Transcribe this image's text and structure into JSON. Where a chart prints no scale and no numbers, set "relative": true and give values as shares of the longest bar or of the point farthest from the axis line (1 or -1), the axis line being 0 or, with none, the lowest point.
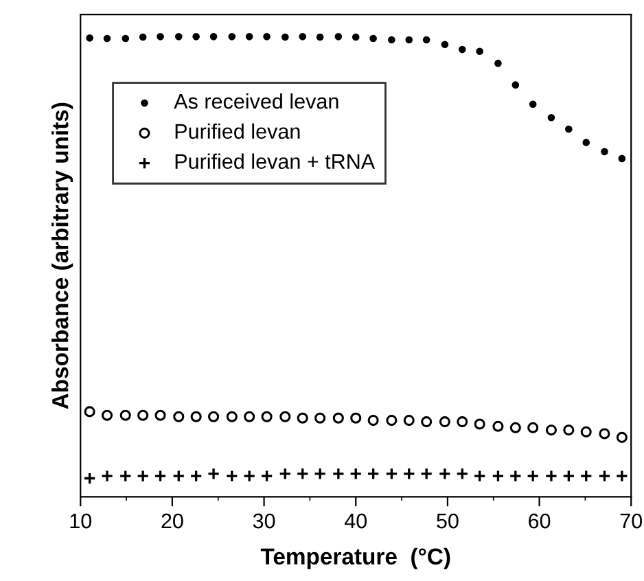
{
  "chart_data": {
    "type": "scatter",
    "xlabel": "Temperature  (°C)",
    "ylabel": "Absorbance (arbitrary units)",
    "relative": true,
    "xlim": [
      10,
      70
    ],
    "xticks": [
      10,
      20,
      30,
      40,
      50,
      60,
      70
    ],
    "legend": "top left",
    "grid": false,
    "x": [
      11,
      12.9,
      14.9,
      16.8,
      18.7,
      20.7,
      22.6,
      24.5,
      26.5,
      28.4,
      30.3,
      32.3,
      34.2,
      36.1,
      38.1,
      40,
      41.9,
      43.9,
      45.8,
      47.7,
      49.7,
      51.6,
      53.5,
      55.5,
      57.4,
      59.3,
      61.3,
      63.2,
      65.1,
      67.1,
      69
    ],
    "series": [
      {
        "name": "As received levan",
        "color": "#000000",
        "marker": "circle",
        "values": [
          0.997,
          0.996,
          0.996,
          0.999,
          1.0,
          1.0,
          1.0,
          1.0,
          1.0,
          1.0,
          1.0,
          0.999,
          1.0,
          0.999,
          1.0,
          0.999,
          0.996,
          0.993,
          0.993,
          0.993,
          0.983,
          0.972,
          0.968,
          0.942,
          0.895,
          0.853,
          0.824,
          0.799,
          0.77,
          0.75,
          0.735
        ]
      },
      {
        "name": "Purified levan",
        "color": "#000000",
        "marker": "circle",
        "values": [
          0.185,
          0.177,
          0.177,
          0.177,
          0.177,
          0.174,
          0.174,
          0.174,
          0.174,
          0.174,
          0.174,
          0.174,
          0.171,
          0.171,
          0.171,
          0.171,
          0.166,
          0.166,
          0.166,
          0.163,
          0.163,
          0.163,
          0.158,
          0.153,
          0.15,
          0.15,
          0.145,
          0.145,
          0.141,
          0.137,
          0.129
        ]
      },
      {
        "name": "Purified levan + tRNA",
        "color": "#000000",
        "marker": "cross",
        "values": [
          0.04,
          0.045,
          0.045,
          0.045,
          0.045,
          0.045,
          0.045,
          0.05,
          0.045,
          0.045,
          0.045,
          0.05,
          0.05,
          0.05,
          0.05,
          0.05,
          0.05,
          0.05,
          0.05,
          0.05,
          0.05,
          0.05,
          0.045,
          0.045,
          0.045,
          0.045,
          0.045,
          0.045,
          0.045,
          0.045,
          0.045
        ]
      }
    ]
  }
}
